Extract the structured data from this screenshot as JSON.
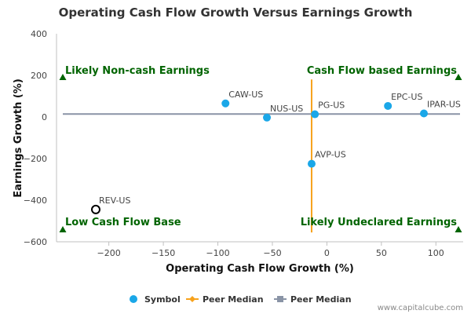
{
  "chart_data": {
    "type": "scatter",
    "title": "Operating Cash Flow Growth Versus Earnings Growth",
    "xlabel": "Operating Cash Flow Growth (%)",
    "ylabel": "Earnings Growth (%)",
    "xlim": [
      -248,
      125
    ],
    "ylim": [
      -600,
      400
    ],
    "xticks": [
      -200,
      -150,
      -100,
      -50,
      0,
      50,
      100
    ],
    "yticks": [
      400,
      200,
      0,
      -200,
      -400,
      -600
    ],
    "grid": false,
    "legend_position": "bottom",
    "points": [
      {
        "label": "CAW-US",
        "x": -93,
        "y": 65,
        "style": "filled"
      },
      {
        "label": "NUS-US",
        "x": -55,
        "y": -3,
        "style": "filled"
      },
      {
        "label": "PG-US",
        "x": -11,
        "y": 13,
        "style": "filled"
      },
      {
        "label": "EPC-US",
        "x": 56,
        "y": 53,
        "style": "filled"
      },
      {
        "label": "IPAR-US",
        "x": 89,
        "y": 17,
        "style": "filled"
      },
      {
        "label": "AVP-US",
        "x": -14,
        "y": -225,
        "style": "filled"
      },
      {
        "label": "REV-US",
        "x": -212,
        "y": -445,
        "style": "hollow"
      }
    ],
    "peer_median_x": -14,
    "peer_median_y": 14,
    "quadrants": {
      "top_left": "Likely Non-cash Earnings",
      "top_right": "Cash Flow based Earnings",
      "bottom_left": "Low Cash Flow Base",
      "bottom_right": "Likely Undeclared Earnings"
    },
    "legend": [
      {
        "name": "Symbol",
        "marker": "circle",
        "color": "#1aa7e8"
      },
      {
        "name": "Peer Median",
        "marker": "diamond-line",
        "color": "#f7a21c"
      },
      {
        "name": "Peer Median",
        "marker": "square-line",
        "color": "#8a94a6"
      }
    ],
    "colors": {
      "point": "#1aa7e8",
      "vertical_median": "#f7a21c",
      "horizontal_median": "#8a94a6",
      "quadrant": "#006400",
      "hollow_point": "#000000"
    }
  },
  "credit": "www.capitalcube.com"
}
